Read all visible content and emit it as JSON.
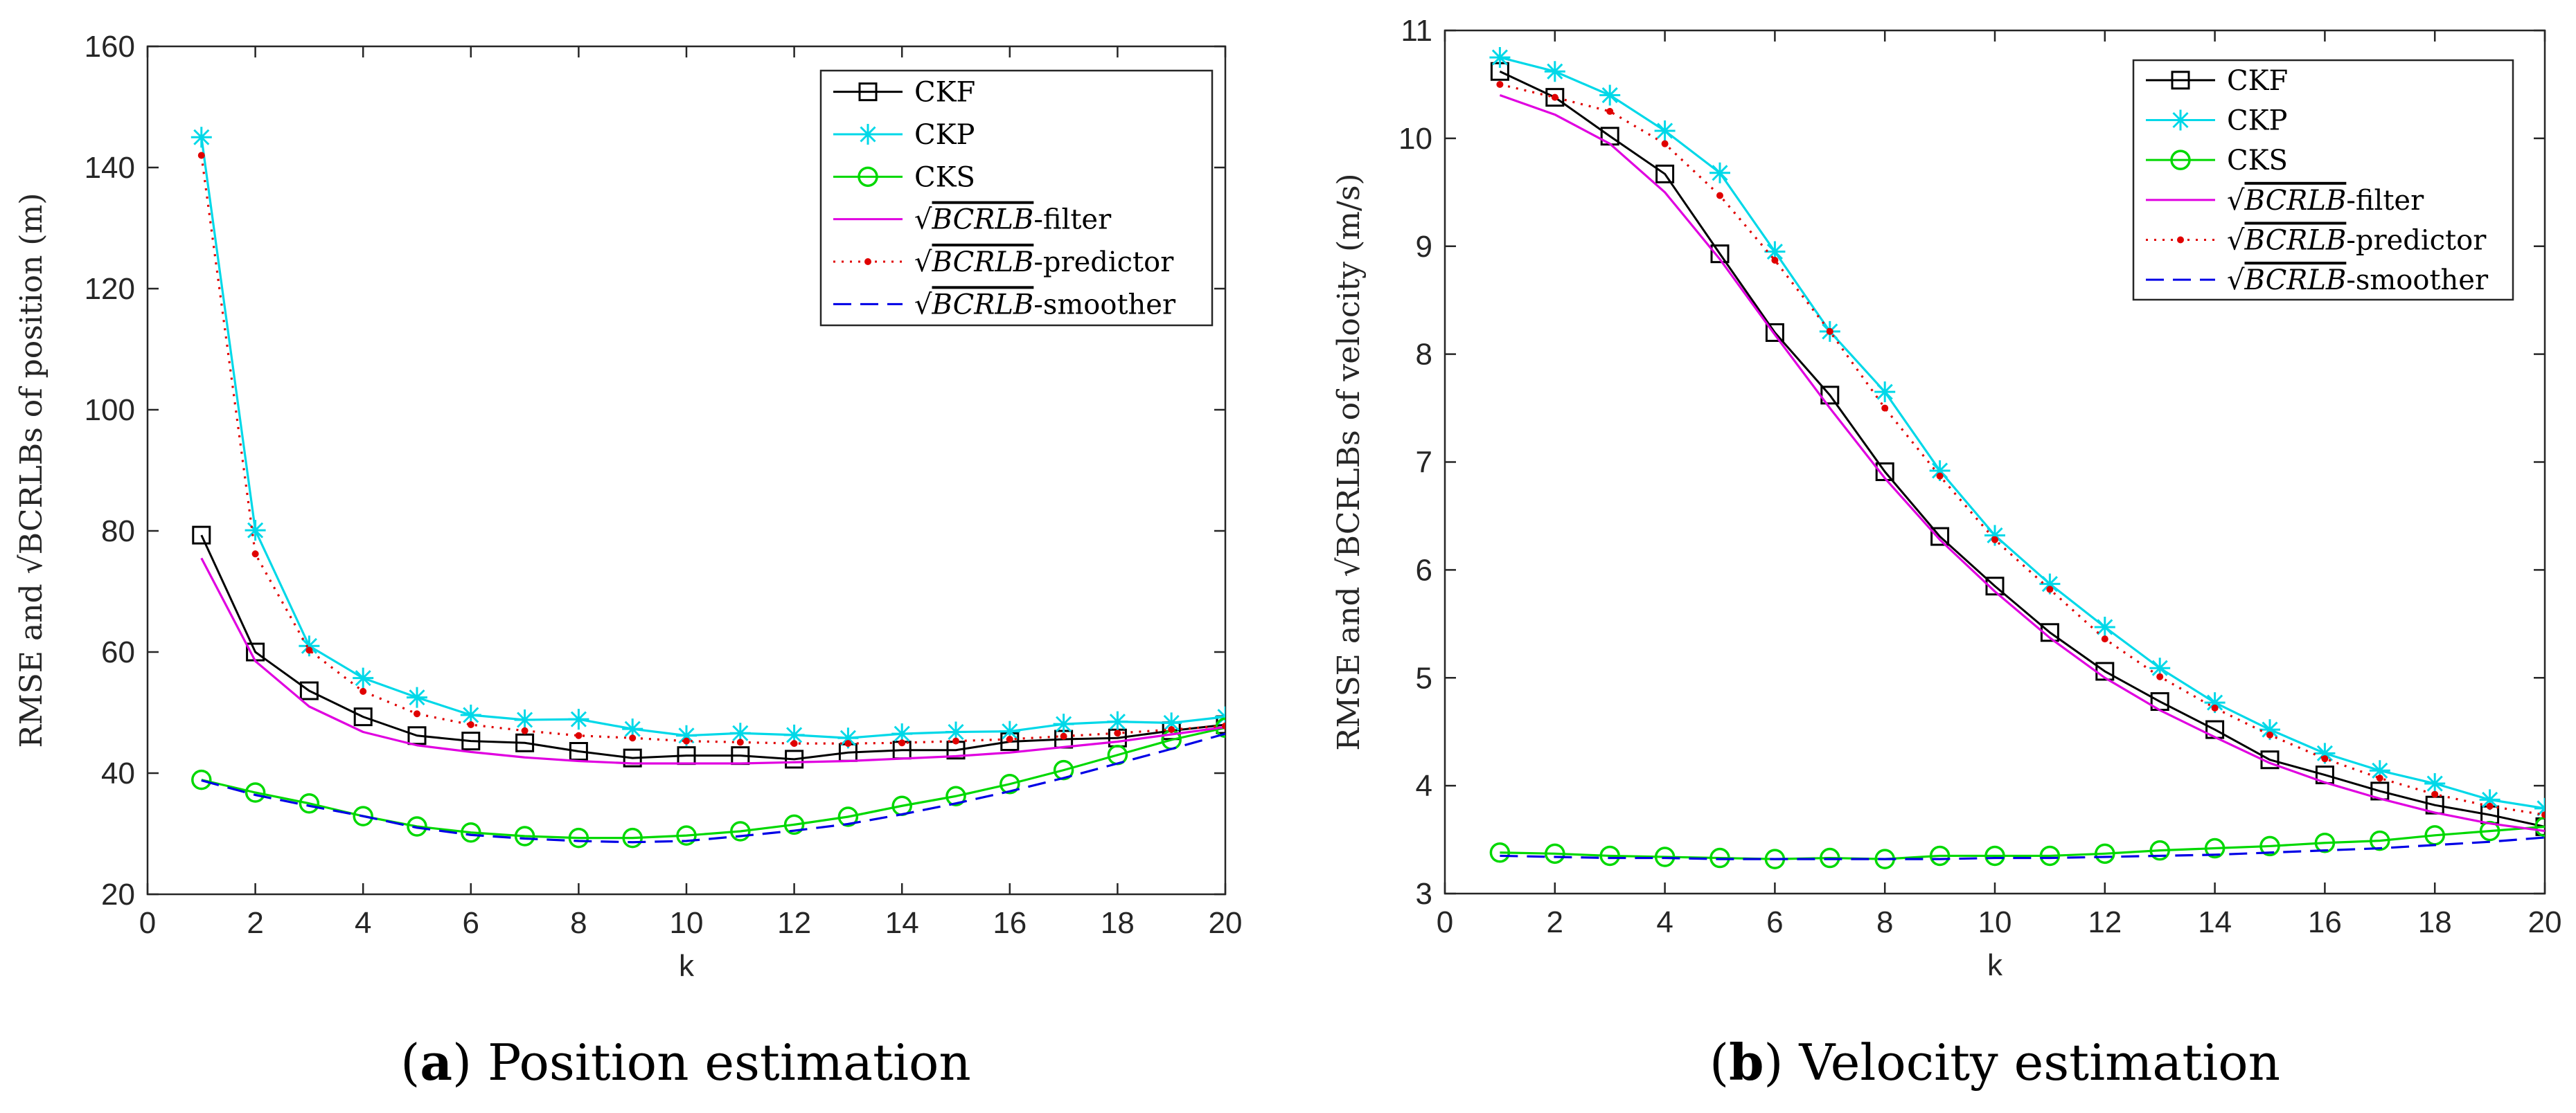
{
  "chart_data": [
    {
      "type": "line",
      "panel": "a",
      "caption_bold": "a",
      "caption_text": "Position estimation",
      "xlabel": "k",
      "ylabel": "RMSE and √BCRLBs of position (m)",
      "xlim": [
        0,
        20
      ],
      "ylim": [
        20,
        160
      ],
      "xticks": [
        0,
        2,
        4,
        6,
        8,
        10,
        12,
        14,
        16,
        18,
        20
      ],
      "yticks": [
        20,
        40,
        60,
        80,
        100,
        120,
        140,
        160
      ],
      "x": [
        1,
        2,
        3,
        4,
        5,
        6,
        7,
        8,
        9,
        10,
        11,
        12,
        13,
        14,
        15,
        16,
        17,
        18,
        19,
        20
      ],
      "series": [
        {
          "name": "CKF",
          "legend": "CKF",
          "color": "#000000",
          "marker": "square",
          "dash": "",
          "values": [
            79.3,
            60.0,
            53.6,
            49.3,
            46.2,
            45.3,
            45.0,
            43.6,
            42.5,
            42.9,
            42.9,
            42.3,
            43.4,
            43.8,
            43.8,
            45.2,
            45.6,
            45.8,
            47.0,
            48.0
          ]
        },
        {
          "name": "CKP",
          "legend": "CKP",
          "color": "#00d8e8",
          "marker": "star",
          "dash": "",
          "values": [
            145.0,
            80.1,
            61.0,
            55.7,
            52.5,
            49.6,
            48.8,
            48.9,
            47.3,
            46.2,
            46.6,
            46.3,
            45.8,
            46.5,
            46.8,
            46.9,
            48.1,
            48.5,
            48.3,
            49.3
          ]
        },
        {
          "name": "CKS",
          "legend": "CKS",
          "color": "#00d800",
          "marker": "circle",
          "dash": "",
          "values": [
            38.9,
            36.8,
            35.0,
            32.9,
            31.2,
            30.2,
            29.6,
            29.3,
            29.3,
            29.7,
            30.4,
            31.5,
            32.8,
            34.6,
            36.2,
            38.2,
            40.5,
            43.0,
            45.5,
            47.5
          ]
        },
        {
          "name": "BCRLB-filter",
          "legend": "-filter",
          "color": "#e000e0",
          "marker": "none",
          "dash": "",
          "values": [
            75.5,
            58.5,
            51.0,
            46.8,
            44.6,
            43.5,
            42.6,
            42.0,
            41.6,
            41.6,
            41.6,
            41.8,
            42.0,
            42.4,
            42.8,
            43.4,
            44.3,
            45.2,
            46.4,
            47.6
          ]
        },
        {
          "name": "BCRLB-predictor",
          "legend": "-predictor",
          "color": "#e00000",
          "marker": "dot",
          "dash": "3 9",
          "values": [
            142.0,
            76.2,
            60.3,
            53.5,
            49.8,
            48.0,
            47.0,
            46.2,
            45.8,
            45.3,
            45.1,
            44.9,
            44.9,
            45.0,
            45.3,
            45.6,
            46.1,
            46.6,
            47.2,
            47.8
          ]
        },
        {
          "name": "BCRLB-smoother",
          "legend": "-smoother",
          "color": "#0000e6",
          "marker": "none",
          "dash": "26 13",
          "values": [
            38.8,
            36.4,
            34.6,
            32.9,
            31.0,
            29.8,
            29.2,
            28.8,
            28.6,
            28.8,
            29.6,
            30.5,
            31.6,
            33.2,
            35.0,
            37.0,
            39.2,
            41.6,
            44.0,
            46.5
          ]
        }
      ]
    },
    {
      "type": "line",
      "panel": "b",
      "caption_bold": "b",
      "caption_text": "Velocity estimation",
      "xlabel": "k",
      "ylabel": "RMSE and √BCRLBs of velocity (m/s)",
      "xlim": [
        0,
        20
      ],
      "ylim": [
        3,
        11
      ],
      "xticks": [
        0,
        2,
        4,
        6,
        8,
        10,
        12,
        14,
        16,
        18,
        20
      ],
      "yticks": [
        3,
        4,
        5,
        6,
        7,
        8,
        9,
        10,
        11
      ],
      "x": [
        1,
        2,
        3,
        4,
        5,
        6,
        7,
        8,
        9,
        10,
        11,
        12,
        13,
        14,
        15,
        16,
        17,
        18,
        19,
        20
      ],
      "series": [
        {
          "name": "CKF",
          "legend": "CKF",
          "color": "#000000",
          "marker": "square",
          "dash": "",
          "values": [
            10.62,
            10.38,
            10.02,
            9.67,
            8.93,
            8.2,
            7.62,
            6.91,
            6.31,
            5.85,
            5.42,
            5.06,
            4.78,
            4.52,
            4.24,
            4.1,
            3.95,
            3.82,
            3.73,
            3.62
          ]
        },
        {
          "name": "CKP",
          "legend": "CKP",
          "color": "#00d8e8",
          "marker": "star",
          "dash": "",
          "values": [
            10.75,
            10.62,
            10.4,
            10.07,
            9.68,
            8.95,
            8.21,
            7.65,
            6.92,
            6.32,
            5.87,
            5.47,
            5.09,
            4.77,
            4.52,
            4.3,
            4.14,
            4.02,
            3.87,
            3.79
          ]
        },
        {
          "name": "CKS",
          "legend": "CKS",
          "color": "#00d800",
          "marker": "circle",
          "dash": "",
          "values": [
            3.38,
            3.37,
            3.35,
            3.34,
            3.33,
            3.32,
            3.33,
            3.32,
            3.35,
            3.35,
            3.35,
            3.37,
            3.4,
            3.42,
            3.44,
            3.47,
            3.49,
            3.54,
            3.58,
            3.62
          ]
        },
        {
          "name": "BCRLB-filter",
          "legend": "-filter",
          "color": "#e000e0",
          "marker": "none",
          "dash": "",
          "values": [
            10.4,
            10.22,
            9.95,
            9.5,
            8.88,
            8.18,
            7.5,
            6.85,
            6.28,
            5.8,
            5.37,
            5.0,
            4.7,
            4.45,
            4.21,
            4.03,
            3.88,
            3.75,
            3.65,
            3.58
          ]
        },
        {
          "name": "BCRLB-predictor",
          "legend": "-predictor",
          "color": "#e00000",
          "marker": "dot",
          "dash": "3 9",
          "values": [
            10.5,
            10.38,
            10.25,
            9.95,
            9.47,
            8.87,
            8.21,
            7.5,
            6.87,
            6.28,
            5.82,
            5.36,
            5.01,
            4.72,
            4.47,
            4.25,
            4.07,
            3.92,
            3.81,
            3.73
          ]
        },
        {
          "name": "BCRLB-smoother",
          "legend": "-smoother",
          "color": "#0000e6",
          "marker": "none",
          "dash": "26 13",
          "values": [
            3.35,
            3.34,
            3.33,
            3.33,
            3.32,
            3.32,
            3.32,
            3.32,
            3.32,
            3.33,
            3.33,
            3.34,
            3.35,
            3.36,
            3.38,
            3.4,
            3.42,
            3.45,
            3.48,
            3.52
          ]
        }
      ]
    }
  ]
}
